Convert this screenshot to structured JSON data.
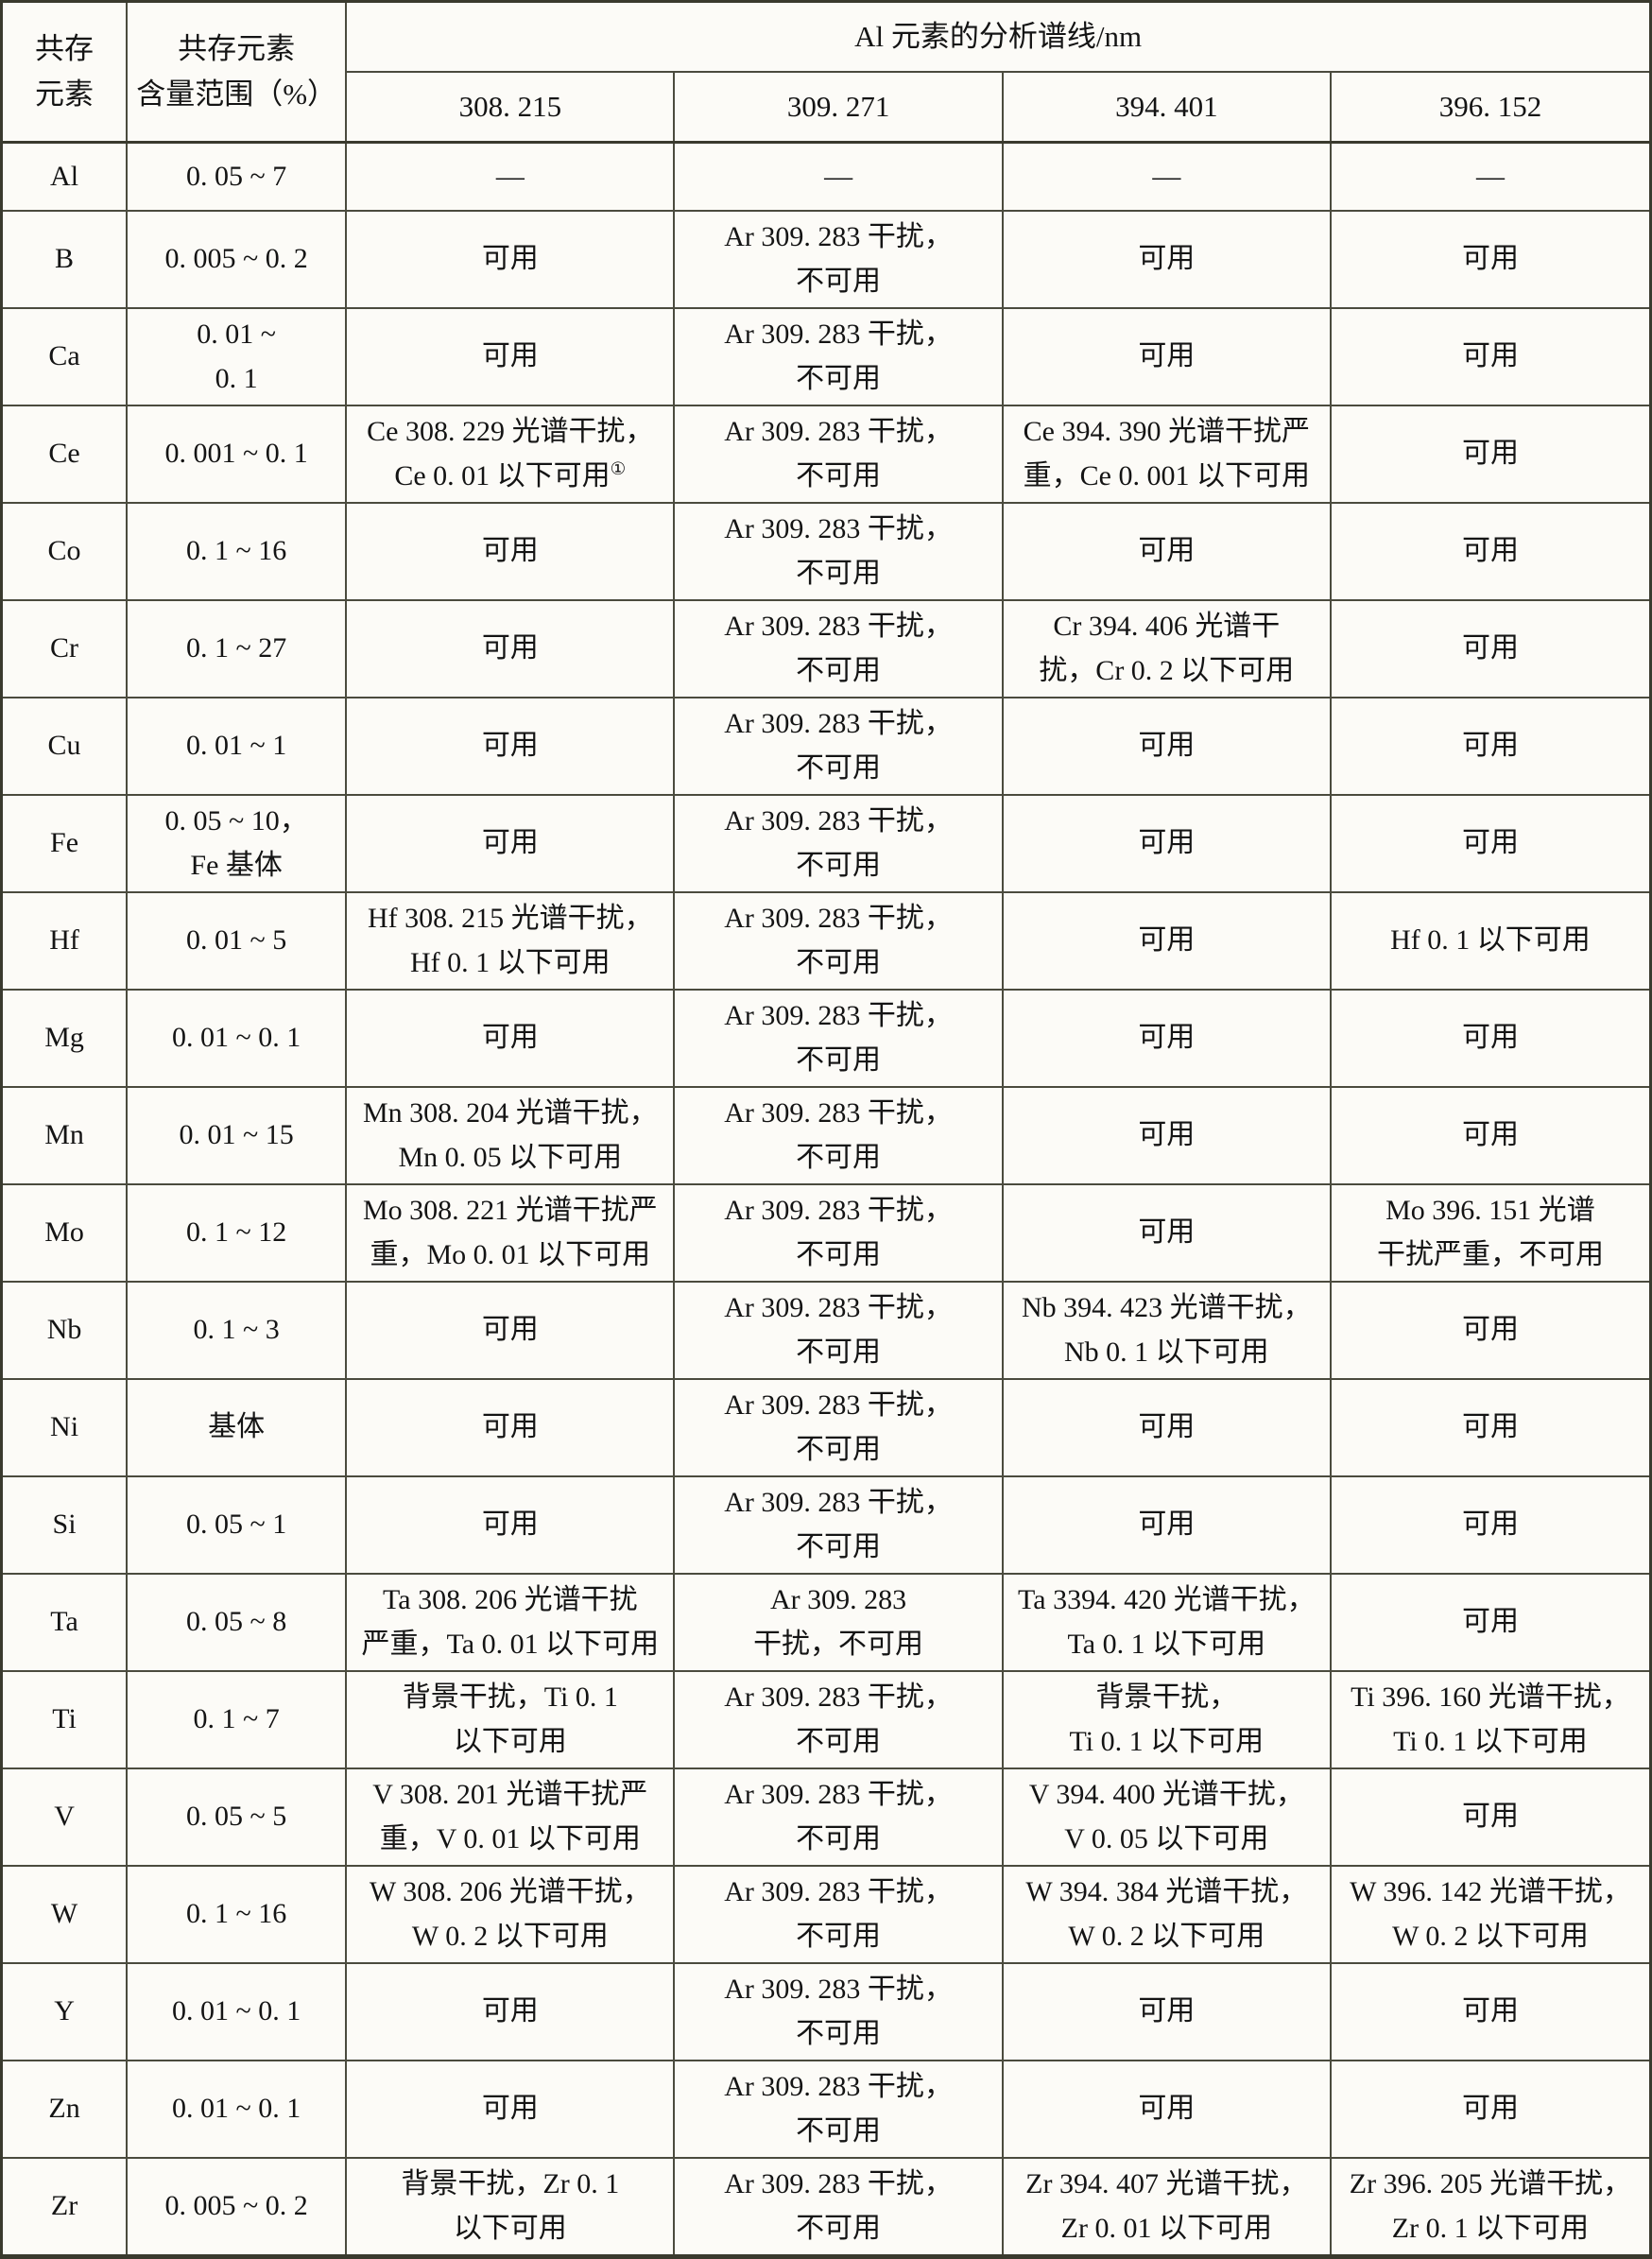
{
  "table": {
    "header": {
      "col_element": [
        "共存",
        "元素"
      ],
      "col_range": [
        "共存元素",
        "含量范围（%）"
      ],
      "span_title": "Al 元素的分析谱线/nm",
      "wavelengths": [
        "308. 215",
        "309. 271",
        "394. 401",
        "396. 152"
      ]
    },
    "rows": [
      {
        "element": "Al",
        "range": [
          "0. 05 ~ 7"
        ],
        "cells": [
          [
            "—"
          ],
          [
            "—"
          ],
          [
            "—"
          ],
          [
            "—"
          ]
        ]
      },
      {
        "element": "B",
        "range": [
          "0. 005 ~ 0. 2"
        ],
        "cells": [
          [
            "可用"
          ],
          [
            "Ar 309. 283 干扰，",
            "不可用"
          ],
          [
            "可用"
          ],
          [
            "可用"
          ]
        ]
      },
      {
        "element": "Ca",
        "range": [
          "0. 01 ~",
          "0. 1"
        ],
        "cells": [
          [
            "可用"
          ],
          [
            "Ar 309. 283 干扰，",
            "不可用"
          ],
          [
            "可用"
          ],
          [
            "可用"
          ]
        ]
      },
      {
        "element": "Ce",
        "range": [
          "0. 001 ~ 0. 1"
        ],
        "cells": [
          [
            "Ce 308. 229 光谱干扰，",
            "Ce 0. 01 以下可用①"
          ],
          [
            "Ar 309. 283 干扰，",
            "不可用"
          ],
          [
            "Ce 394. 390 光谱干扰严",
            "重，Ce 0. 001 以下可用"
          ],
          [
            "可用"
          ]
        ]
      },
      {
        "element": "Co",
        "range": [
          "0. 1 ~ 16"
        ],
        "cells": [
          [
            "可用"
          ],
          [
            "Ar 309. 283 干扰，",
            "不可用"
          ],
          [
            "可用"
          ],
          [
            "可用"
          ]
        ]
      },
      {
        "element": "Cr",
        "range": [
          "0. 1 ~ 27"
        ],
        "cells": [
          [
            "可用"
          ],
          [
            "Ar 309. 283 干扰，",
            "不可用"
          ],
          [
            "Cr 394. 406 光谱干",
            "扰，Cr 0. 2 以下可用"
          ],
          [
            "可用"
          ]
        ]
      },
      {
        "element": "Cu",
        "range": [
          "0. 01 ~ 1"
        ],
        "cells": [
          [
            "可用"
          ],
          [
            "Ar 309. 283 干扰，",
            "不可用"
          ],
          [
            "可用"
          ],
          [
            "可用"
          ]
        ]
      },
      {
        "element": "Fe",
        "range": [
          "0. 05 ~ 10，",
          "Fe 基体"
        ],
        "cells": [
          [
            "可用"
          ],
          [
            "Ar 309. 283 干扰，",
            "不可用"
          ],
          [
            "可用"
          ],
          [
            "可用"
          ]
        ]
      },
      {
        "element": "Hf",
        "range": [
          "0. 01 ~ 5"
        ],
        "cells": [
          [
            "Hf 308. 215 光谱干扰，",
            "Hf 0. 1 以下可用"
          ],
          [
            "Ar 309. 283 干扰，",
            "不可用"
          ],
          [
            "可用"
          ],
          [
            "Hf 0. 1 以下可用"
          ]
        ]
      },
      {
        "element": "Mg",
        "range": [
          "0. 01 ~ 0. 1"
        ],
        "cells": [
          [
            "可用"
          ],
          [
            "Ar 309. 283 干扰，",
            "不可用"
          ],
          [
            "可用"
          ],
          [
            "可用"
          ]
        ]
      },
      {
        "element": "Mn",
        "range": [
          "0. 01 ~ 15"
        ],
        "cells": [
          [
            "Mn 308. 204 光谱干扰，",
            "Mn 0. 05 以下可用"
          ],
          [
            "Ar 309. 283 干扰，",
            "不可用"
          ],
          [
            "可用"
          ],
          [
            "可用"
          ]
        ]
      },
      {
        "element": "Mo",
        "range": [
          "0. 1 ~ 12"
        ],
        "cells": [
          [
            "Mo 308. 221 光谱干扰严",
            "重，Mo 0. 01 以下可用"
          ],
          [
            "Ar 309. 283 干扰，",
            "不可用"
          ],
          [
            "可用"
          ],
          [
            "Mo 396. 151 光谱",
            "干扰严重，不可用"
          ]
        ]
      },
      {
        "element": "Nb",
        "range": [
          "0. 1 ~ 3"
        ],
        "cells": [
          [
            "可用"
          ],
          [
            "Ar 309. 283 干扰，",
            "不可用"
          ],
          [
            "Nb 394. 423 光谱干扰，",
            "Nb 0. 1 以下可用"
          ],
          [
            "可用"
          ]
        ]
      },
      {
        "element": "Ni",
        "range": [
          "基体"
        ],
        "cells": [
          [
            "可用"
          ],
          [
            "Ar 309. 283 干扰，",
            "不可用"
          ],
          [
            "可用"
          ],
          [
            "可用"
          ]
        ]
      },
      {
        "element": "Si",
        "range": [
          "0. 05 ~ 1"
        ],
        "cells": [
          [
            "可用"
          ],
          [
            "Ar 309. 283 干扰，",
            "不可用"
          ],
          [
            "可用"
          ],
          [
            "可用"
          ]
        ]
      },
      {
        "element": "Ta",
        "range": [
          "0. 05 ~ 8"
        ],
        "cells": [
          [
            "Ta 308. 206 光谱干扰",
            "严重，Ta 0. 01 以下可用"
          ],
          [
            "Ar 309. 283",
            "干扰，不可用"
          ],
          [
            "Ta 3394. 420 光谱干扰，",
            "Ta 0. 1 以下可用"
          ],
          [
            "可用"
          ]
        ]
      },
      {
        "element": "Ti",
        "range": [
          "0. 1 ~ 7"
        ],
        "cells": [
          [
            "背景干扰，Ti 0. 1",
            "以下可用"
          ],
          [
            "Ar 309. 283 干扰，",
            "不可用"
          ],
          [
            "背景干扰，",
            "Ti 0. 1 以下可用"
          ],
          [
            "Ti 396. 160 光谱干扰，",
            "Ti 0. 1 以下可用"
          ]
        ]
      },
      {
        "element": "V",
        "range": [
          "0. 05 ~ 5"
        ],
        "cells": [
          [
            "V 308. 201 光谱干扰严",
            "重，V 0. 01 以下可用"
          ],
          [
            "Ar 309. 283 干扰，",
            "不可用"
          ],
          [
            "V 394. 400 光谱干扰，",
            "V 0. 05 以下可用"
          ],
          [
            "可用"
          ]
        ]
      },
      {
        "element": "W",
        "range": [
          "0. 1 ~ 16"
        ],
        "cells": [
          [
            "W 308. 206 光谱干扰，",
            "W 0. 2 以下可用"
          ],
          [
            "Ar 309. 283 干扰，",
            "不可用"
          ],
          [
            "W 394. 384 光谱干扰，",
            "W 0. 2 以下可用"
          ],
          [
            "W 396. 142 光谱干扰，",
            "W 0. 2 以下可用"
          ]
        ]
      },
      {
        "element": "Y",
        "range": [
          "0. 01 ~ 0. 1"
        ],
        "cells": [
          [
            "可用"
          ],
          [
            "Ar 309. 283 干扰，",
            "不可用"
          ],
          [
            "可用"
          ],
          [
            "可用"
          ]
        ]
      },
      {
        "element": "Zn",
        "range": [
          "0. 01 ~ 0. 1"
        ],
        "cells": [
          [
            "可用"
          ],
          [
            "Ar 309. 283 干扰，",
            "不可用"
          ],
          [
            "可用"
          ],
          [
            "可用"
          ]
        ]
      },
      {
        "element": "Zr",
        "range": [
          "0. 005 ~ 0. 2"
        ],
        "cells": [
          [
            "背景干扰，Zr 0. 1",
            "以下可用"
          ],
          [
            "Ar 309. 283 干扰，",
            "不可用"
          ],
          [
            "Zr 394. 407 光谱干扰，",
            "Zr 0. 01 以下可用"
          ],
          [
            "Zr 396. 205 光谱干扰，",
            "Zr 0. 1 以下可用"
          ]
        ]
      }
    ]
  },
  "colors": {
    "background": "#fcfbf7",
    "border": "#3a3a2e",
    "text": "#141414"
  }
}
